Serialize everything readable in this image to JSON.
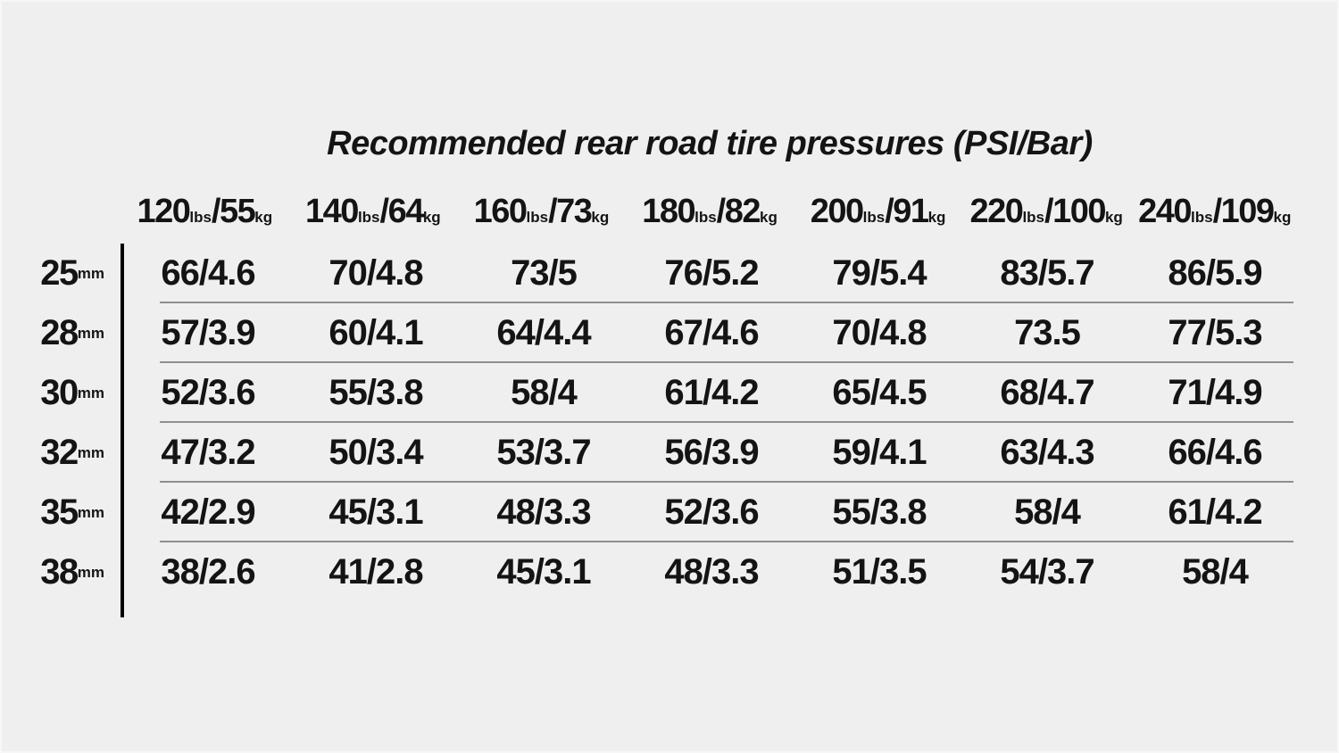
{
  "units": {
    "lbs": "lbs",
    "kg": "kg",
    "mm": "mm"
  },
  "separator": "/",
  "colors": {
    "background": "#efefef",
    "text": "#141414",
    "strong_border": "#000000",
    "row_separator": "#8f8f8f"
  },
  "chart_data": {
    "type": "table",
    "title": "Recommended rear road tire pressures (PSI/Bar)",
    "column_headers": [
      "120lbs/55kg",
      "140lbs/64kg",
      "160lbs/73kg",
      "180lbs/82kg",
      "200lbs/91kg",
      "220lbs/100kg",
      "240lbs/109kg"
    ],
    "columns": [
      {
        "lbs": "120",
        "kg": "55"
      },
      {
        "lbs": "140",
        "kg": "64"
      },
      {
        "lbs": "160",
        "kg": "73"
      },
      {
        "lbs": "180",
        "kg": "82"
      },
      {
        "lbs": "200",
        "kg": "91"
      },
      {
        "lbs": "220",
        "kg": "100"
      },
      {
        "lbs": "240",
        "kg": "109"
      }
    ],
    "row_headers": [
      "25mm",
      "28mm",
      "30mm",
      "32mm",
      "35mm",
      "38mm"
    ],
    "rows": [
      {
        "tire_width_mm": "25",
        "values": [
          "66/4.6",
          "70/4.8",
          "73/5",
          "76/5.2",
          "79/5.4",
          "83/5.7",
          "86/5.9"
        ]
      },
      {
        "tire_width_mm": "28",
        "values": [
          "57/3.9",
          "60/4.1",
          "64/4.4",
          "67/4.6",
          "70/4.8",
          "73.5",
          "77/5.3"
        ]
      },
      {
        "tire_width_mm": "30",
        "values": [
          "52/3.6",
          "55/3.8",
          "58/4",
          "61/4.2",
          "65/4.5",
          "68/4.7",
          "71/4.9"
        ]
      },
      {
        "tire_width_mm": "32",
        "values": [
          "47/3.2",
          "50/3.4",
          "53/3.7",
          "56/3.9",
          "59/4.1",
          "63/4.3",
          "66/4.6"
        ]
      },
      {
        "tire_width_mm": "35",
        "values": [
          "42/2.9",
          "45/3.1",
          "48/3.3",
          "52/3.6",
          "55/3.8",
          "58/4",
          "61/4.2"
        ]
      },
      {
        "tire_width_mm": "38",
        "values": [
          "38/2.6",
          "41/2.8",
          "45/3.1",
          "48/3.3",
          "51/3.5",
          "54/3.7",
          "58/4"
        ]
      }
    ]
  }
}
